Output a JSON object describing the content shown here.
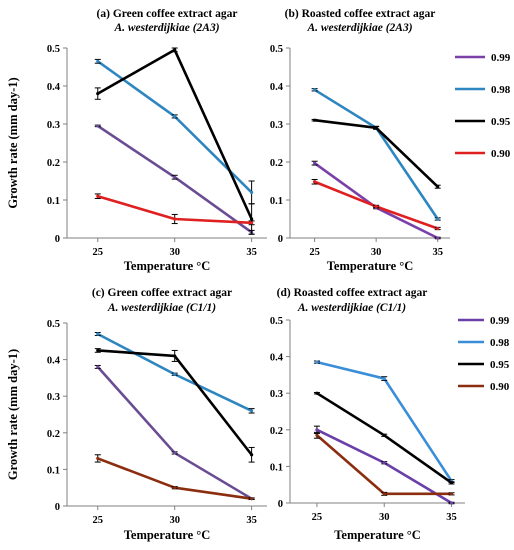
{
  "chart_data": [
    {
      "type": "line",
      "panel": "a",
      "title": "(a) Green coffee extract agar",
      "subtitle": "A. westerdijkiae (2A3)",
      "xlabel": "Temperature °C",
      "ylabel": "Growth rate (mm day-1)",
      "x": [
        25,
        30,
        35
      ],
      "xlim": [
        23,
        36
      ],
      "ylim": [
        0,
        0.5
      ],
      "yticks": [
        "0",
        "0.1",
        "0.2",
        "0.3",
        "0.4",
        "0.5"
      ],
      "series": [
        {
          "name": "0.99",
          "color": "#6a4c93",
          "values": [
            0.295,
            0.16,
            0.015
          ],
          "errors": [
            0.002,
            0.005,
            0.005
          ]
        },
        {
          "name": "0.98",
          "color": "#2e86c1",
          "values": [
            0.465,
            0.32,
            0.12
          ],
          "errors": [
            0.005,
            0.004,
            0.03
          ]
        },
        {
          "name": "0.95",
          "color": "#000000",
          "values": [
            0.38,
            0.495,
            0.05
          ],
          "errors": [
            0.015,
            0.005,
            0.04
          ]
        },
        {
          "name": "0.90",
          "color": "#e02020",
          "values": [
            0.11,
            0.05,
            0.04
          ],
          "errors": [
            0.006,
            0.012,
            0.005
          ]
        }
      ]
    },
    {
      "type": "line",
      "panel": "b",
      "title": "(b) Roasted coffee extract agar",
      "subtitle": "A. westerdijkiae (2A3)",
      "xlabel": "Temperature °C",
      "ylabel": "",
      "x": [
        25,
        30,
        35
      ],
      "xlim": [
        23,
        36
      ],
      "ylim": [
        0,
        0.5
      ],
      "yticks": [
        "0",
        "0.1",
        "0.2",
        "0.3",
        "0.4",
        "0.5"
      ],
      "legend": "right",
      "series": [
        {
          "name": "0.99",
          "color": "#7b3fa8",
          "values": [
            0.197,
            0.08,
            0.0
          ],
          "errors": [
            0.005,
            0.003,
            0.002
          ]
        },
        {
          "name": "0.98",
          "color": "#2e86c1",
          "values": [
            0.39,
            0.29,
            0.05
          ],
          "errors": [
            0.003,
            0.004,
            0.003
          ]
        },
        {
          "name": "0.95",
          "color": "#000000",
          "values": [
            0.31,
            0.29,
            0.135
          ],
          "errors": [
            0.002,
            0.003,
            0.004
          ]
        },
        {
          "name": "0.90",
          "color": "#e02020",
          "values": [
            0.148,
            0.083,
            0.025
          ],
          "errors": [
            0.006,
            0.003,
            0.003
          ]
        }
      ]
    },
    {
      "type": "line",
      "panel": "c",
      "title": "(c) Green coffee extract agar",
      "subtitle": "A. westerdijkiae (C1/1)",
      "xlabel": "Temperature °C",
      "ylabel": "Growth rate (mm day-1)",
      "x": [
        25,
        30,
        35
      ],
      "xlim": [
        23,
        36
      ],
      "ylim": [
        0,
        0.5
      ],
      "yticks": [
        "0",
        "0.1",
        "0.2",
        "0.3",
        "0.4",
        "0.5"
      ],
      "series": [
        {
          "name": "0.99",
          "color": "#6a4c93",
          "values": [
            0.38,
            0.145,
            0.02
          ],
          "errors": [
            0.004,
            0.003,
            0.002
          ]
        },
        {
          "name": "0.98",
          "color": "#2e86c1",
          "values": [
            0.47,
            0.36,
            0.26
          ],
          "errors": [
            0.004,
            0.003,
            0.006
          ]
        },
        {
          "name": "0.95",
          "color": "#000000",
          "values": [
            0.425,
            0.41,
            0.14
          ],
          "errors": [
            0.005,
            0.015,
            0.02
          ]
        },
        {
          "name": "0.90",
          "color": "#8b2e0f",
          "values": [
            0.13,
            0.05,
            0.02
          ],
          "errors": [
            0.01,
            0.003,
            0.002
          ]
        }
      ]
    },
    {
      "type": "line",
      "panel": "d",
      "title": "(d) Roasted coffee extract agar",
      "subtitle": "A. westerdijkiae (C1/1)",
      "xlabel": "Temperature °C",
      "ylabel": "",
      "x": [
        25,
        30,
        35
      ],
      "xlim": [
        23,
        36
      ],
      "ylim": [
        0,
        0.5
      ],
      "yticks": [
        "0",
        "0.1",
        "0.2",
        "0.3",
        "0.4",
        "0.5"
      ],
      "legend": "right",
      "series": [
        {
          "name": "0.99",
          "color": "#6a3fa8",
          "values": [
            0.2,
            0.11,
            0.0
          ],
          "errors": [
            0.01,
            0.003,
            0.002
          ]
        },
        {
          "name": "0.98",
          "color": "#3a8ed8",
          "values": [
            0.385,
            0.34,
            0.06
          ],
          "errors": [
            0.003,
            0.005,
            0.004
          ]
        },
        {
          "name": "0.95",
          "color": "#000000",
          "values": [
            0.3,
            0.185,
            0.055
          ],
          "errors": [
            0.002,
            0.003,
            0.003
          ]
        },
        {
          "name": "0.90",
          "color": "#8b2e0f",
          "values": [
            0.185,
            0.025,
            0.025
          ],
          "errors": [
            0.008,
            0.004,
            0.003
          ]
        }
      ]
    }
  ]
}
